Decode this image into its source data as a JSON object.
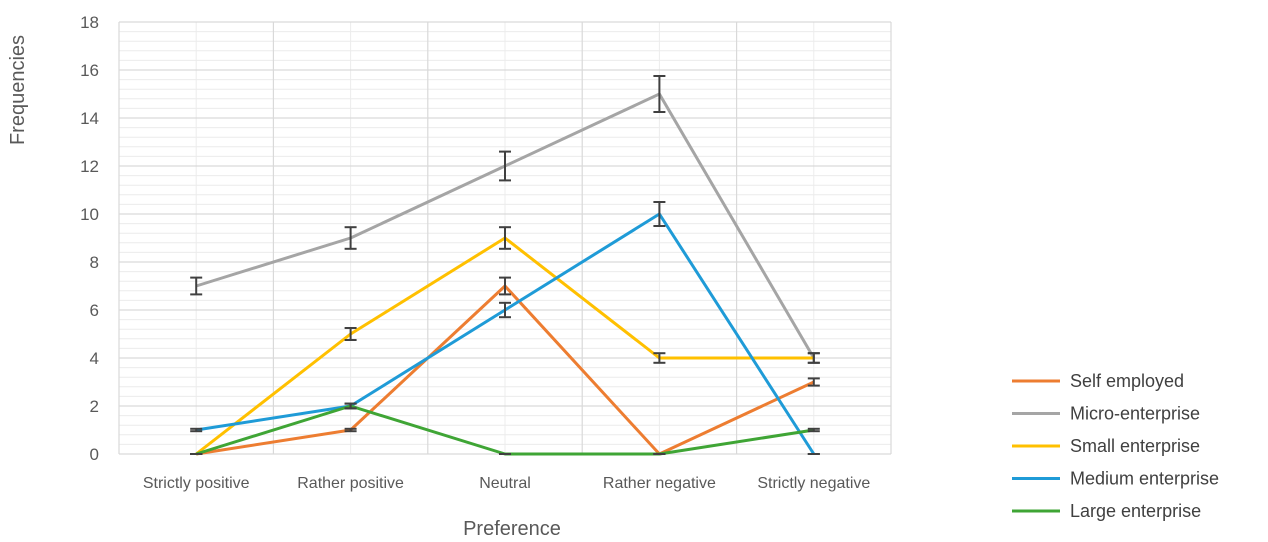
{
  "chart_data": {
    "type": "line",
    "xlabel": "Preference",
    "ylabel": "Frequencies",
    "categories": [
      "Strictly positive",
      "Rather positive",
      "Neutral",
      "Rather negative",
      "Strictly negative"
    ],
    "ylim": [
      0,
      18
    ],
    "ytick_step": 2,
    "grid": true,
    "error_bars": true,
    "legend_position": "bottom-right",
    "series": [
      {
        "name": "Self employed",
        "color": "#ED7D31",
        "values": [
          0,
          1,
          7,
          0,
          3
        ],
        "error": [
          0,
          0.05,
          0.35,
          0,
          0.15
        ]
      },
      {
        "name": "Micro-enterprise",
        "color": "#A5A5A5",
        "values": [
          7,
          9,
          12,
          15,
          4
        ],
        "error": [
          0.35,
          0.45,
          0.6,
          0.75,
          0.2
        ]
      },
      {
        "name": "Small enterprise",
        "color": "#FFC000",
        "values": [
          0,
          5,
          9,
          4,
          4
        ],
        "error": [
          0,
          0.25,
          0.45,
          0.2,
          0.2
        ]
      },
      {
        "name": "Medium enterprise",
        "color": "#1F9BD7",
        "values": [
          1,
          2,
          6,
          10,
          0
        ],
        "error": [
          0.05,
          0.1,
          0.3,
          0.5,
          0
        ]
      },
      {
        "name": "Large enterprise",
        "color": "#3FA535",
        "values": [
          0,
          2,
          0,
          0,
          1
        ],
        "error": [
          0,
          0.1,
          0,
          0,
          0.05
        ]
      }
    ]
  }
}
